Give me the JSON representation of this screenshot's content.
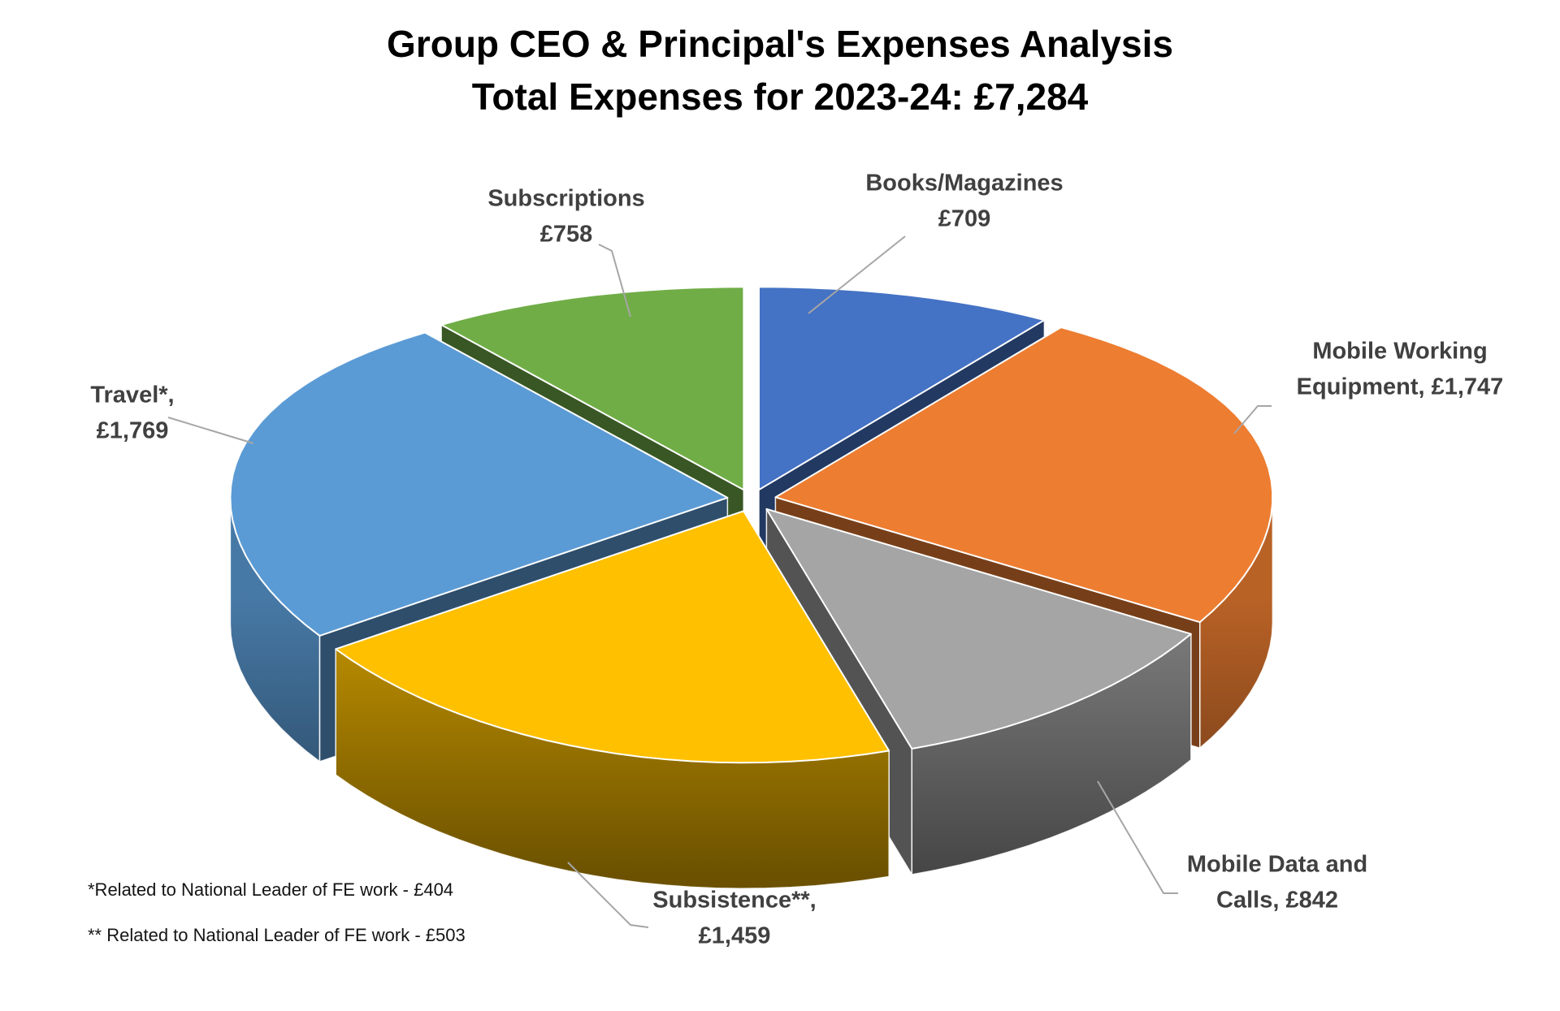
{
  "chart_data": {
    "type": "pie",
    "style": "3d-exploded",
    "title": "Group CEO & Principal's Expenses Analysis",
    "subtitle": "Total Expenses for 2023-24: £7,284",
    "total": 7284,
    "currency": "£",
    "direction": "clockwise",
    "start_angle_deg": 0,
    "label_color": "#404040",
    "leader_color": "#A6A6A6",
    "slices": [
      {
        "id": "books",
        "name": "Books/Magazines",
        "value": 709,
        "color": "#4472C4",
        "label_lines": [
          "Books/Magazines",
          "£709"
        ]
      },
      {
        "id": "mwe",
        "name": "Mobile Working Equipment",
        "value": 1747,
        "color": "#ED7D31",
        "label_lines": [
          "Mobile Working",
          "Equipment, £1,747"
        ]
      },
      {
        "id": "mdc",
        "name": "Mobile Data and Calls",
        "value": 842,
        "color": "#A5A5A5",
        "label_lines": [
          "Mobile Data and",
          "Calls, £842"
        ]
      },
      {
        "id": "subsistence",
        "name": "Subsistence",
        "value": 1459,
        "color": "#FFC000",
        "label_lines": [
          "Subsistence**,",
          "£1,459"
        ]
      },
      {
        "id": "travel",
        "name": "Travel",
        "value": 1769,
        "color": "#5B9BD5",
        "label_lines": [
          "Travel*,",
          "£1,769"
        ]
      },
      {
        "id": "subscriptions",
        "name": "Subscriptions",
        "value": 758,
        "color": "#70AD47",
        "label_lines": [
          "Subscriptions",
          "£758"
        ]
      }
    ],
    "footnotes": [
      "*Related to National Leader of FE work - £404",
      "** Related to National Leader of FE work - £503"
    ]
  }
}
